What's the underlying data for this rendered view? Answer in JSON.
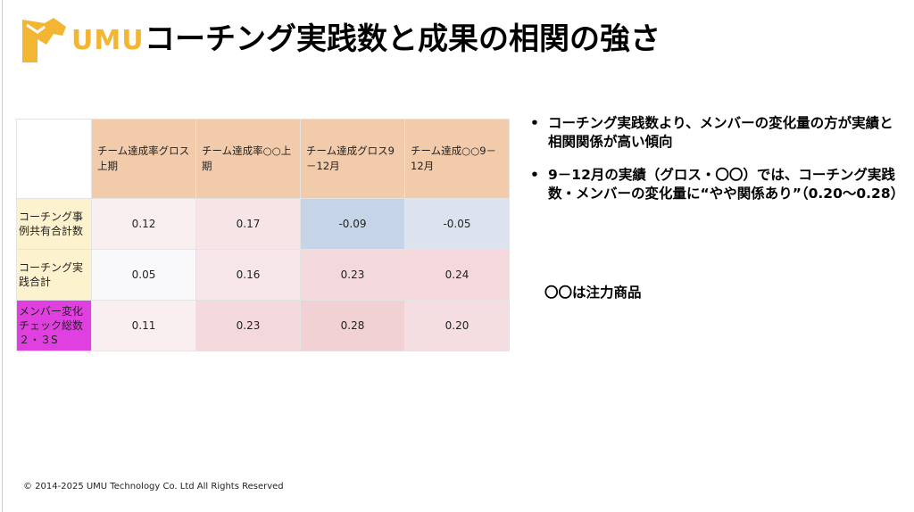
{
  "brand": {
    "logo_text": "UMU",
    "color": "#F2B632"
  },
  "title": "コーチング実践数と成果の相関の強さ",
  "table": {
    "columns": [
      "チーム達成率グロス上期",
      "チーム達成率○○上期",
      "チーム達成グロス9－12月",
      "チーム達成○○9－12月"
    ],
    "rows": [
      {
        "label": "コーチング事例共有合計数",
        "color": "#FDF2CE",
        "values": [
          "0.12",
          "0.17",
          "-0.09",
          "-0.05"
        ]
      },
      {
        "label": "コーチング実践合計",
        "color": "#FDF2CE",
        "values": [
          "0.05",
          "0.16",
          "0.23",
          "0.24"
        ]
      },
      {
        "label": "メンバー変化チェック総数２・３S",
        "color": "#E040E0",
        "values": [
          "0.11",
          "0.23",
          "0.28",
          "0.20"
        ]
      }
    ],
    "header_color": "#F1CBAA"
  },
  "bullets": [
    "コーチング実践数より、メンバーの変化量の方が実績と相関関係が高い傾向",
    "9－12月の実績（グロス・〇〇）では、コーチング実践数・メンバーの変化量に“やや関係あり”（0.20〜0.28）"
  ],
  "note": "〇〇は注力商品",
  "footer": "© 2014-2025 UMU Technology Co. Ltd All Rights Reserved"
}
